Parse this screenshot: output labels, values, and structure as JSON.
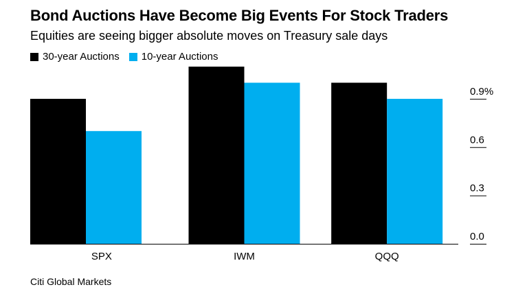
{
  "chart_data": {
    "type": "bar",
    "title": "Bond Auctions Have Become Big Events For Stock Traders",
    "subtitle": "Equities are seeing bigger absolute moves on Treasury sale days",
    "categories": [
      "SPX",
      "IWM",
      "QQQ"
    ],
    "series": [
      {
        "name": "30-year Auctions",
        "color": "#000000",
        "values": [
          0.9,
          1.1,
          1.0
        ]
      },
      {
        "name": "10-year Auctions",
        "color": "#00aeef",
        "values": [
          0.7,
          1.0,
          0.9
        ]
      }
    ],
    "yticks": [
      {
        "value": 0.0,
        "label": "0.0"
      },
      {
        "value": 0.3,
        "label": "0.3"
      },
      {
        "value": 0.6,
        "label": "0.6"
      },
      {
        "value": 0.9,
        "label": "0.9%"
      }
    ],
    "ylim": [
      0,
      1.1
    ],
    "xlabel": "",
    "ylabel": "",
    "grid": false,
    "legend_position": "top-left",
    "source": "Citi Global Markets"
  }
}
